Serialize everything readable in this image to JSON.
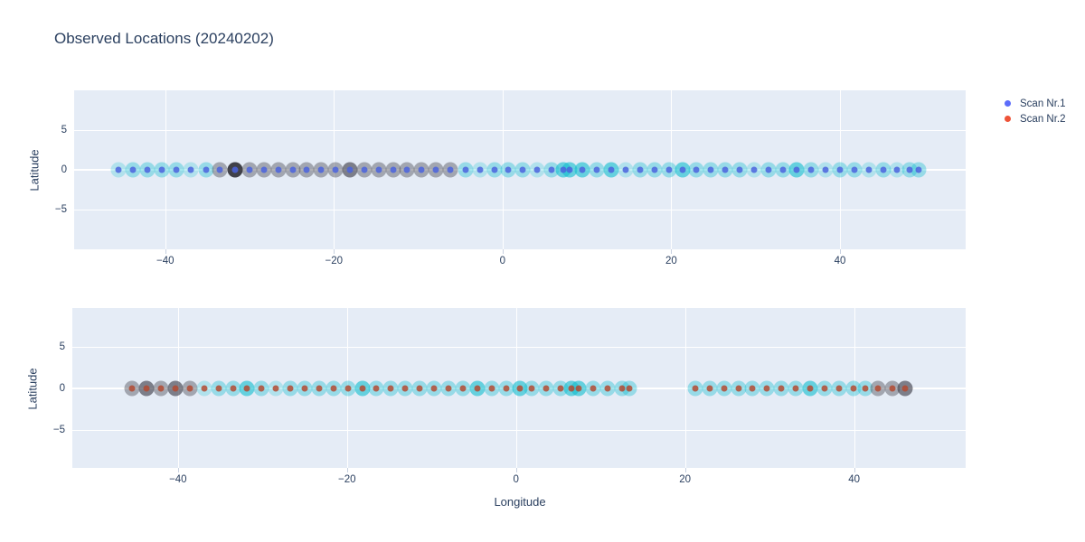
{
  "title": "Observed Locations (20240202)",
  "legend": {
    "items": [
      {
        "label": "Scan Nr.1",
        "color": "#5c6cfa"
      },
      {
        "label": "Scan Nr.2",
        "color": "#ee5338"
      }
    ]
  },
  "axes": {
    "ylabel_top": "Latitude",
    "ylabel_bottom": "Latitude",
    "xlabel": "Longitude"
  },
  "colors": {
    "plot_background": "#e5ecf6",
    "gridline": "#ffffff",
    "text": "#2a3f5f",
    "dot_scan1": "#4a63dd",
    "dot_scan2": "#b24a33",
    "halo_palette": {
      "tl": "rgba(23,190,207,0.25)",
      "t": "rgba(23,190,207,0.38)",
      "td": "rgba(23,190,207,0.62)",
      "g": "rgba(68,68,78,0.42)",
      "gd": "rgba(68,68,78,0.65)",
      "k": "rgba(35,35,42,0.85)"
    }
  },
  "chart_data": [
    {
      "type": "scatter",
      "name": "Scan Nr.1",
      "xlabel": "",
      "ylabel": "Latitude",
      "xlim": [
        -50.8,
        54.9
      ],
      "ylim": [
        -10.1,
        10.1
      ],
      "xticks": [
        -40,
        -20,
        0,
        20,
        40
      ],
      "yticks": [
        -5,
        0,
        5
      ],
      "dot_color_key": "dot_scan1",
      "x": [
        -45.5,
        -43.8,
        -42.1,
        -40.4,
        -38.7,
        -37.0,
        -35.2,
        -33.5,
        -31.7,
        -30.0,
        -28.3,
        -26.6,
        -24.9,
        -23.2,
        -21.5,
        -19.8,
        -18.1,
        -16.4,
        -14.7,
        -13.0,
        -11.3,
        -9.6,
        -7.9,
        -6.2,
        -4.4,
        -2.7,
        -1.0,
        0.7,
        2.4,
        4.1,
        5.8,
        7.2,
        7.9,
        9.5,
        11.2,
        12.9,
        14.6,
        16.3,
        18.0,
        19.7,
        21.3,
        23.0,
        24.7,
        26.4,
        28.1,
        29.8,
        31.5,
        33.2,
        34.9,
        36.6,
        38.3,
        40.0,
        41.7,
        43.4,
        45.1,
        46.8,
        48.2,
        49.3
      ],
      "y": [
        0,
        0,
        0,
        0,
        0,
        0,
        0,
        0,
        0,
        0,
        0,
        0,
        0,
        0,
        0,
        0,
        0,
        0,
        0,
        0,
        0,
        0,
        0,
        0,
        0,
        0,
        0,
        0,
        0,
        0,
        0,
        0,
        0,
        0,
        0,
        0,
        0,
        0,
        0,
        0,
        0,
        0,
        0,
        0,
        0,
        0,
        0,
        0,
        0,
        0,
        0,
        0,
        0,
        0,
        0,
        0,
        0,
        0
      ],
      "halo": [
        "tl",
        "t",
        "t",
        "t",
        "t",
        "tl",
        "t",
        "g",
        "k",
        "g",
        "g",
        "g",
        "g",
        "g",
        "g",
        "g",
        "gd",
        "g",
        "g",
        "g",
        "g",
        "g",
        "g",
        "g",
        "t",
        "tl",
        "t",
        "t",
        "t",
        "tl",
        "t",
        "td",
        "td",
        "td",
        "t",
        "td",
        "tl",
        "t",
        "t",
        "t",
        "td",
        "t",
        "t",
        "t",
        "t",
        "tl",
        "t",
        "t",
        "td",
        "t",
        "tl",
        "t",
        "t",
        "tl",
        "t",
        "tl",
        "t",
        "t"
      ]
    },
    {
      "type": "scatter",
      "name": "Scan Nr.2",
      "xlabel": "Longitude",
      "ylabel": "Latitude",
      "xlim": [
        -52.5,
        53.2
      ],
      "ylim": [
        -9.55,
        9.6
      ],
      "xticks": [
        -40,
        -20,
        0,
        20,
        40
      ],
      "yticks": [
        -5,
        0,
        5
      ],
      "dot_color_key": "dot_scan2",
      "x": [
        -45.4,
        -43.7,
        -42.0,
        -40.3,
        -38.6,
        -36.9,
        -35.2,
        -33.5,
        -31.8,
        -30.1,
        -28.4,
        -26.7,
        -25.0,
        -23.3,
        -21.6,
        -19.9,
        -18.2,
        -16.5,
        -14.8,
        -13.1,
        -11.4,
        -9.7,
        -8.0,
        -6.3,
        -4.6,
        -2.9,
        -1.2,
        0.5,
        1.9,
        3.6,
        5.3,
        6.6,
        7.4,
        9.1,
        10.8,
        12.5,
        13.4,
        21.2,
        22.9,
        24.6,
        26.3,
        28.0,
        29.7,
        31.4,
        33.1,
        34.8,
        36.5,
        38.2,
        39.9,
        41.3,
        42.8,
        44.5,
        46.0
      ],
      "y": [
        0,
        0,
        0,
        0,
        0,
        0,
        0,
        0,
        0,
        0,
        0,
        0,
        0,
        0,
        0,
        0,
        0,
        0,
        0,
        0,
        0,
        0,
        0,
        0,
        0,
        0,
        0,
        0,
        0,
        0,
        0,
        0,
        0,
        0,
        0,
        0,
        0,
        0,
        0,
        0,
        0,
        0,
        0,
        0,
        0,
        0,
        0,
        0,
        0,
        0,
        0,
        0,
        0
      ],
      "halo": [
        "g",
        "gd",
        "g",
        "gd",
        "g",
        "tl",
        "t",
        "t",
        "td",
        "t",
        "tl",
        "t",
        "t",
        "t",
        "t",
        "t",
        "td",
        "t",
        "t",
        "t",
        "t",
        "t",
        "t",
        "t",
        "td",
        "t",
        "t",
        "td",
        "t",
        "t",
        "t",
        "td",
        "td",
        "t",
        "t",
        "t",
        "t",
        "t",
        "t",
        "t",
        "t",
        "t",
        "t",
        "t",
        "t",
        "td",
        "t",
        "t",
        "t",
        "t",
        "g",
        "g",
        "gd"
      ]
    }
  ]
}
